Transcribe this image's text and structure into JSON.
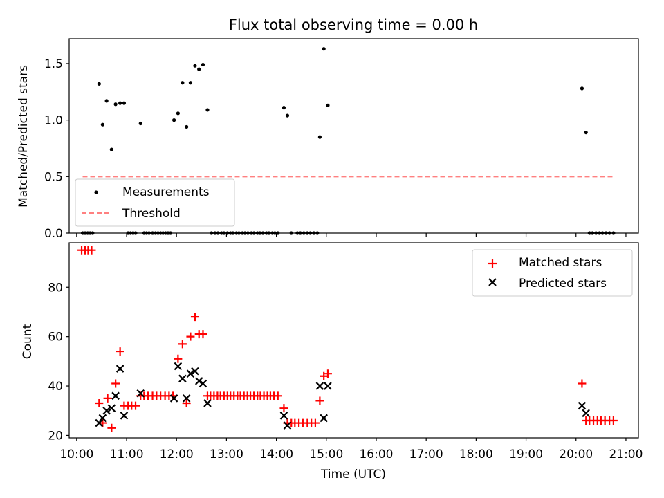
{
  "chart_data": [
    {
      "type": "scatter",
      "title": "Flux total observing time = 0.00 h",
      "xlabel": "",
      "ylabel": "Matched/Predicted stars",
      "xlim": [
        9.85,
        21.25
      ],
      "ylim": [
        0,
        1.72
      ],
      "yticks": [
        0.0,
        0.5,
        1.0,
        1.5
      ],
      "ytick_labels": [
        "0.0",
        "0.5",
        "1.0",
        "1.5"
      ],
      "grid": false,
      "legend_position": "lower-left",
      "legend": [
        "Measurements",
        "Threshold"
      ],
      "threshold": {
        "name": "Threshold",
        "value": 0.5,
        "x_range": [
          10.12,
          20.75
        ],
        "color": "#ff8080",
        "style": "dashed"
      },
      "series": [
        {
          "name": "Measurements",
          "color": "#000000",
          "marker": "dot",
          "points": [
            [
              10.12,
              0
            ],
            [
              10.17,
              0
            ],
            [
              10.22,
              0
            ],
            [
              10.27,
              0
            ],
            [
              10.32,
              0
            ],
            [
              10.45,
              1.32
            ],
            [
              10.52,
              0.96
            ],
            [
              10.6,
              1.17
            ],
            [
              10.7,
              0.74
            ],
            [
              10.78,
              1.14
            ],
            [
              10.87,
              1.15
            ],
            [
              10.95,
              1.15
            ],
            [
              11.03,
              0
            ],
            [
              11.08,
              0
            ],
            [
              11.13,
              0
            ],
            [
              11.18,
              0
            ],
            [
              11.28,
              0.97
            ],
            [
              11.35,
              0
            ],
            [
              11.4,
              0
            ],
            [
              11.45,
              0
            ],
            [
              11.52,
              0
            ],
            [
              11.58,
              0
            ],
            [
              11.63,
              0
            ],
            [
              11.68,
              0
            ],
            [
              11.73,
              0
            ],
            [
              11.78,
              0
            ],
            [
              11.83,
              0
            ],
            [
              11.88,
              0
            ],
            [
              11.95,
              1.0
            ],
            [
              12.03,
              1.06
            ],
            [
              12.12,
              1.33
            ],
            [
              12.2,
              0.94
            ],
            [
              12.28,
              1.33
            ],
            [
              12.37,
              1.48
            ],
            [
              12.45,
              1.45
            ],
            [
              12.53,
              1.49
            ],
            [
              12.62,
              1.09
            ],
            [
              12.7,
              0
            ],
            [
              12.77,
              0
            ],
            [
              12.83,
              0
            ],
            [
              12.9,
              0
            ],
            [
              12.95,
              0
            ],
            [
              13.02,
              0
            ],
            [
              13.08,
              0
            ],
            [
              13.13,
              0
            ],
            [
              13.2,
              0
            ],
            [
              13.25,
              0
            ],
            [
              13.32,
              0
            ],
            [
              13.37,
              0
            ],
            [
              13.43,
              0
            ],
            [
              13.5,
              0
            ],
            [
              13.55,
              0
            ],
            [
              13.62,
              0
            ],
            [
              13.67,
              0
            ],
            [
              13.73,
              0
            ],
            [
              13.8,
              0
            ],
            [
              13.85,
              0
            ],
            [
              13.92,
              0
            ],
            [
              13.97,
              0
            ],
            [
              14.03,
              0
            ],
            [
              14.15,
              1.11
            ],
            [
              14.22,
              1.04
            ],
            [
              14.3,
              0
            ],
            [
              14.42,
              0
            ],
            [
              14.48,
              0
            ],
            [
              14.55,
              0
            ],
            [
              14.62,
              0
            ],
            [
              14.68,
              0
            ],
            [
              14.75,
              0
            ],
            [
              14.82,
              0
            ],
            [
              14.87,
              0.85
            ],
            [
              14.95,
              1.63
            ],
            [
              15.03,
              1.13
            ],
            [
              20.12,
              1.28
            ],
            [
              20.2,
              0.89
            ],
            [
              20.27,
              0
            ],
            [
              20.33,
              0
            ],
            [
              20.4,
              0
            ],
            [
              20.47,
              0
            ],
            [
              20.53,
              0
            ],
            [
              20.6,
              0
            ],
            [
              20.67,
              0
            ],
            [
              20.75,
              0
            ]
          ]
        }
      ]
    },
    {
      "type": "scatter",
      "xlabel": "Time (UTC)",
      "ylabel": "Count",
      "xlim": [
        9.85,
        21.25
      ],
      "ylim": [
        19,
        98
      ],
      "yticks": [
        20,
        40,
        60,
        80
      ],
      "ytick_labels": [
        "20",
        "40",
        "60",
        "80"
      ],
      "xticks": [
        10,
        11,
        12,
        13,
        14,
        15,
        16,
        17,
        18,
        19,
        20,
        21
      ],
      "xtick_labels": [
        "10:00",
        "11:00",
        "12:00",
        "13:00",
        "14:00",
        "15:00",
        "16:00",
        "17:00",
        "18:00",
        "19:00",
        "20:00",
        "21:00"
      ],
      "grid": false,
      "legend_position": "upper-right",
      "legend": [
        "Matched stars",
        "Predicted stars"
      ],
      "series": [
        {
          "name": "Matched stars",
          "color": "#ff0000",
          "marker": "plus",
          "points": [
            [
              10.1,
              95
            ],
            [
              10.17,
              95
            ],
            [
              10.23,
              95
            ],
            [
              10.3,
              95
            ],
            [
              10.45,
              33
            ],
            [
              10.52,
              25
            ],
            [
              10.62,
              35
            ],
            [
              10.7,
              23
            ],
            [
              10.78,
              41
            ],
            [
              10.87,
              54
            ],
            [
              10.95,
              32
            ],
            [
              11.03,
              32
            ],
            [
              11.1,
              32
            ],
            [
              11.18,
              32
            ],
            [
              11.28,
              36
            ],
            [
              11.35,
              36
            ],
            [
              11.43,
              36
            ],
            [
              11.52,
              36
            ],
            [
              11.6,
              36
            ],
            [
              11.68,
              36
            ],
            [
              11.77,
              36
            ],
            [
              11.85,
              36
            ],
            [
              11.93,
              36
            ],
            [
              12.03,
              51
            ],
            [
              12.12,
              57
            ],
            [
              12.2,
              33
            ],
            [
              12.28,
              60
            ],
            [
              12.37,
              68
            ],
            [
              12.45,
              61
            ],
            [
              12.53,
              61
            ],
            [
              12.62,
              36
            ],
            [
              12.68,
              36
            ],
            [
              12.75,
              36
            ],
            [
              12.82,
              36
            ],
            [
              12.88,
              36
            ],
            [
              12.95,
              36
            ],
            [
              13.02,
              36
            ],
            [
              13.08,
              36
            ],
            [
              13.15,
              36
            ],
            [
              13.22,
              36
            ],
            [
              13.28,
              36
            ],
            [
              13.35,
              36
            ],
            [
              13.42,
              36
            ],
            [
              13.48,
              36
            ],
            [
              13.55,
              36
            ],
            [
              13.62,
              36
            ],
            [
              13.68,
              36
            ],
            [
              13.75,
              36
            ],
            [
              13.82,
              36
            ],
            [
              13.88,
              36
            ],
            [
              13.95,
              36
            ],
            [
              14.03,
              36
            ],
            [
              14.15,
              31
            ],
            [
              14.22,
              25
            ],
            [
              14.3,
              25
            ],
            [
              14.37,
              25
            ],
            [
              14.45,
              25
            ],
            [
              14.53,
              25
            ],
            [
              14.62,
              25
            ],
            [
              14.7,
              25
            ],
            [
              14.78,
              25
            ],
            [
              14.87,
              34
            ],
            [
              14.95,
              44
            ],
            [
              15.03,
              45
            ],
            [
              20.12,
              41
            ],
            [
              20.2,
              26
            ],
            [
              20.27,
              26
            ],
            [
              20.35,
              26
            ],
            [
              20.43,
              26
            ],
            [
              20.5,
              26
            ],
            [
              20.58,
              26
            ],
            [
              20.67,
              26
            ],
            [
              20.75,
              26
            ]
          ]
        },
        {
          "name": "Predicted stars",
          "color": "#000000",
          "marker": "x",
          "points": [
            [
              10.45,
              25
            ],
            [
              10.52,
              27
            ],
            [
              10.6,
              30
            ],
            [
              10.7,
              31
            ],
            [
              10.78,
              36
            ],
            [
              10.87,
              47
            ],
            [
              10.95,
              28
            ],
            [
              11.28,
              37
            ],
            [
              11.95,
              35
            ],
            [
              12.03,
              48
            ],
            [
              12.12,
              43
            ],
            [
              12.2,
              35
            ],
            [
              12.28,
              45
            ],
            [
              12.37,
              46
            ],
            [
              12.45,
              42
            ],
            [
              12.53,
              41
            ],
            [
              12.62,
              33
            ],
            [
              14.15,
              28
            ],
            [
              14.22,
              24
            ],
            [
              14.87,
              40
            ],
            [
              14.95,
              27
            ],
            [
              15.03,
              40
            ],
            [
              20.12,
              32
            ],
            [
              20.2,
              29
            ]
          ]
        }
      ]
    }
  ],
  "colors": {
    "axes": "#000000",
    "threshold": "#ff8080",
    "matched": "#ff0000",
    "predicted": "#000000",
    "legend_border": "#cccccc"
  }
}
